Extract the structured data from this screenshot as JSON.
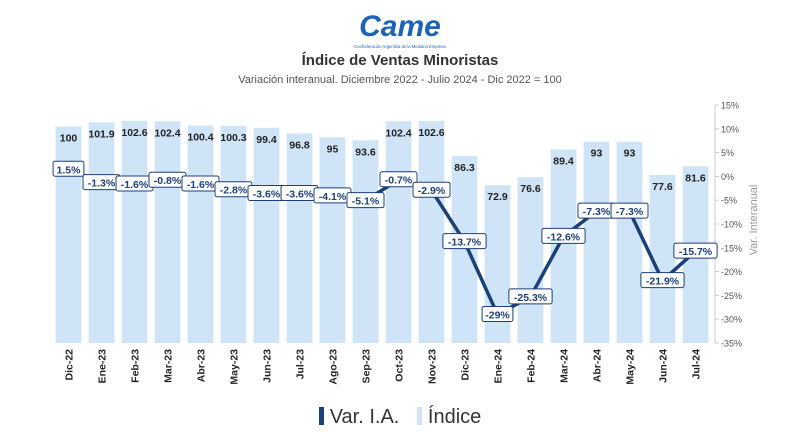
{
  "header": {
    "logo_text": "Came",
    "logo_tagline": "Confederación Argentina de la Mediana Empresa"
  },
  "chart_data": {
    "type": "bar+line",
    "title": "Índice de Ventas Minoristas",
    "subtitle": "Variación interanual. Diciembre 2022 - Julio 2024 - Dic 2022 = 100",
    "categories": [
      "Dic-22",
      "Ene-23",
      "Feb-23",
      "Mar-23",
      "Abr-23",
      "May-23",
      "Jun-23",
      "Jul-23",
      "Ago-23",
      "Sep-23",
      "Oct-23",
      "Nov-23",
      "Dic-23",
      "Ene-24",
      "Feb-24",
      "Mar-24",
      "Abr-24",
      "May-24",
      "Jun-24",
      "Jul-24"
    ],
    "series": [
      {
        "name": "Índice",
        "type": "bar",
        "color": "#cfe4f6",
        "values": [
          100,
          101.9,
          102.6,
          102.4,
          100.4,
          100.3,
          99.4,
          96.8,
          95,
          93.6,
          102.4,
          102.6,
          86.3,
          72.9,
          76.6,
          89.4,
          93,
          93,
          77.6,
          81.6
        ]
      },
      {
        "name": "Var. I.A.",
        "type": "line",
        "axis": "right",
        "color": "#1b3f78",
        "values": [
          1.5,
          -1.3,
          -1.6,
          -0.8,
          -1.6,
          -2.8,
          -3.6,
          -3.6,
          -4.1,
          -5.1,
          -0.7,
          -2.9,
          -13.7,
          -29,
          -25.3,
          -12.6,
          -7.3,
          -7.3,
          -21.9,
          -15.7
        ],
        "labels": [
          "1.5%",
          "-1.3%",
          "-1.6%",
          "-0.8%",
          "-1.6%",
          "-2.8%",
          "-3.6%",
          "-3.6%",
          "-4.1%",
          "-5.1%",
          "-0.7%",
          "-2.9%",
          "-13.7%",
          "-29%",
          "-25.3%",
          "-12.6%",
          "-7.3%",
          "-7.3%",
          "-21.9%",
          "-15.7%"
        ]
      }
    ],
    "bar_labels": [
      "100",
      "101.9",
      "102.6",
      "102.4",
      "100.4",
      "100.3",
      "99.4",
      "96.8",
      "95",
      "93.6",
      "102.4",
      "102.6",
      "86.3",
      "72.9",
      "76.6",
      "89.4",
      "93",
      "93",
      "77.6",
      "81.6"
    ],
    "y2label": "Var. Interanual",
    "y2lim": [
      -35,
      15
    ],
    "y2_ticks": [
      15,
      10,
      5,
      0,
      -5,
      -10,
      -15,
      -20,
      -25,
      -30,
      -35
    ],
    "y2_tick_labels": [
      "15%",
      "10%",
      "5%",
      "0%",
      "-5%",
      "-10%",
      "-15%",
      "-20%",
      "-25%",
      "-30%",
      "-35%"
    ],
    "bar_scale": {
      "value_at_top": 103,
      "value_at_bottom": 0
    },
    "legend": {
      "position": "bottom",
      "items": [
        "Var. I.A.",
        "Índice"
      ]
    },
    "grid": false
  }
}
